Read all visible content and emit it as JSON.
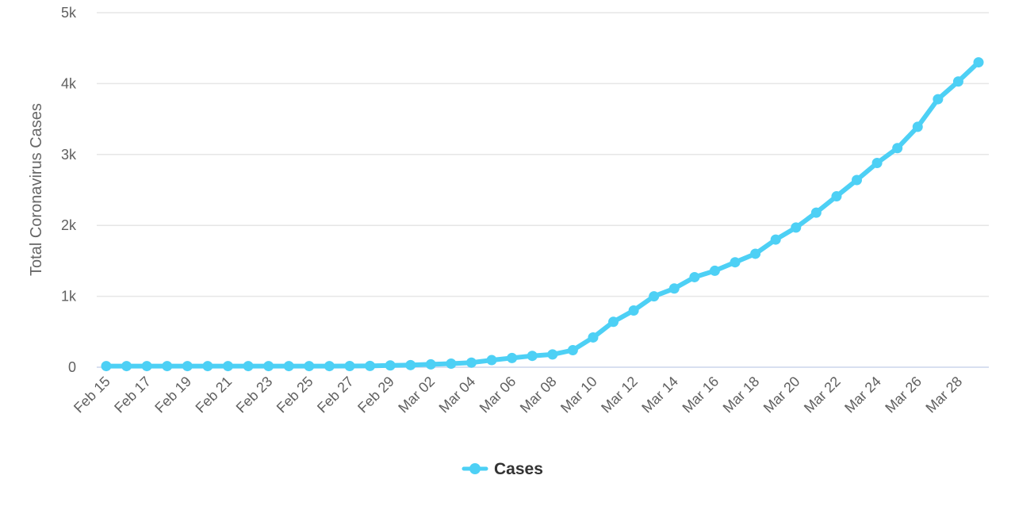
{
  "chart_data": {
    "type": "line",
    "title": "",
    "xlabel": "",
    "ylabel": "Total Coronavirus Cases",
    "ylim": [
      0,
      5000
    ],
    "y_ticks": [
      0,
      1000,
      2000,
      3000,
      4000,
      5000
    ],
    "y_tick_labels": [
      "0",
      "1k",
      "2k",
      "3k",
      "4k",
      "5k"
    ],
    "x_tick_labels": [
      "Feb 15",
      "Feb 17",
      "Feb 19",
      "Feb 21",
      "Feb 23",
      "Feb 25",
      "Feb 27",
      "Feb 29",
      "Mar 02",
      "Mar 04",
      "Mar 06",
      "Mar 08",
      "Mar 10",
      "Mar 12",
      "Mar 14",
      "Mar 16",
      "Mar 18",
      "Mar 20",
      "Mar 22",
      "Mar 24",
      "Mar 26",
      "Mar 28"
    ],
    "categories": [
      "Feb 15",
      "Feb 16",
      "Feb 17",
      "Feb 18",
      "Feb 19",
      "Feb 20",
      "Feb 21",
      "Feb 22",
      "Feb 23",
      "Feb 24",
      "Feb 25",
      "Feb 26",
      "Feb 27",
      "Feb 28",
      "Feb 29",
      "Mar 01",
      "Mar 02",
      "Mar 03",
      "Mar 04",
      "Mar 05",
      "Mar 06",
      "Mar 07",
      "Mar 08",
      "Mar 09",
      "Mar 10",
      "Mar 11",
      "Mar 12",
      "Mar 13",
      "Mar 14",
      "Mar 15",
      "Mar 16",
      "Mar 17",
      "Mar 18",
      "Mar 19",
      "Mar 20",
      "Mar 21",
      "Mar 22",
      "Mar 23",
      "Mar 24",
      "Mar 25",
      "Mar 26",
      "Mar 27",
      "Mar 28",
      "Mar 29"
    ],
    "grid": true,
    "legend_position": "bottom-center",
    "series": [
      {
        "name": "Cases",
        "color": "#4dd0f5",
        "values": [
          16,
          16,
          16,
          16,
          16,
          16,
          16,
          16,
          16,
          16,
          16,
          16,
          17,
          18,
          25,
          30,
          40,
          50,
          65,
          100,
          130,
          160,
          180,
          240,
          420,
          640,
          800,
          1000,
          1110,
          1270,
          1360,
          1480,
          1600,
          1800,
          1970,
          2180,
          2410,
          2640,
          2880,
          3090,
          3390,
          3780,
          4030,
          4300
        ]
      }
    ]
  }
}
